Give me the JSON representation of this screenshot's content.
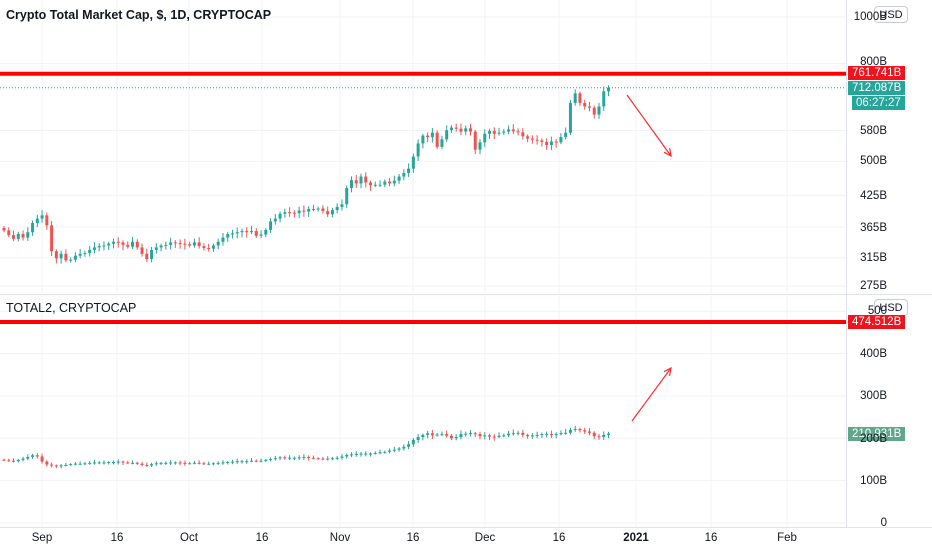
{
  "top_panel": {
    "title": "Crypto Total Market Cap, $, 1D, CRYPTOCAP",
    "currency": "USD",
    "tags": {
      "resistance": "761.741B",
      "last": "712.087B",
      "countdown": "06:27:27"
    }
  },
  "bottom_panel": {
    "title": "TOTAL2, CRYPTOCAP",
    "currency": "USD",
    "tags": {
      "resistance": "474.512B",
      "last": "210.931B"
    }
  },
  "colors": {
    "up": "#26a69a",
    "down": "#ef5350",
    "line": "#ff0000",
    "arrow": "#ff2a2a",
    "axis": "#131722",
    "grid": "#f0f3fa"
  },
  "chart_data": [
    {
      "type": "candlestick",
      "title": "Crypto Total Market Cap, $, 1D, CRYPTOCAP",
      "y_scale": "log",
      "ylim": [
        255,
        1100
      ],
      "y_ticks": [
        "1000B",
        "800B",
        "580B",
        "500B",
        "425B",
        "365B",
        "315B",
        "275B"
      ],
      "y_tick_values": [
        1000,
        800,
        580,
        500,
        425,
        365,
        315,
        275
      ],
      "close_series": [
        359,
        351,
        345,
        353,
        347,
        356,
        372,
        380,
        386,
        368,
        325,
        314,
        321,
        311,
        312,
        318,
        321,
        322,
        327,
        331,
        333,
        334,
        337,
        340,
        339,
        335,
        332,
        340,
        331,
        321,
        313,
        327,
        331,
        334,
        335,
        339,
        338,
        337,
        336,
        334,
        339,
        333,
        330,
        329,
        334,
        340,
        347,
        353,
        354,
        356,
        358,
        356,
        358,
        350,
        352,
        360,
        375,
        380,
        389,
        392,
        391,
        390,
        395,
        393,
        398,
        397,
        399,
        394,
        388,
        396,
        402,
        407,
        440,
        457,
        450,
        465,
        452,
        446,
        447,
        447,
        454,
        450,
        456,
        465,
        473,
        483,
        512,
        545,
        566,
        562,
        574,
        536,
        556,
        581,
        588,
        585,
        577,
        586,
        577,
        529,
        548,
        571,
        579,
        571,
        574,
        577,
        583,
        578,
        575,
        564,
        558,
        555,
        553,
        549,
        541,
        550,
        548,
        562,
        574,
        662,
        693,
        662,
        651,
        647,
        626,
        651,
        700,
        712
      ],
      "horizontal_line": 761.741,
      "last_price": 712.087,
      "countdown": "06:27:27"
    },
    {
      "type": "candlestick",
      "title": "TOTAL2, CRYPTOCAP",
      "y_scale": "linear",
      "ylim": [
        0,
        500
      ],
      "y_ticks": [
        "500",
        "400B",
        "300B",
        "200B",
        "100B",
        "0"
      ],
      "y_tick_values": [
        500,
        400,
        300,
        200,
        100,
        0
      ],
      "close_series": [
        148,
        147,
        146,
        149,
        152,
        156,
        160,
        157,
        145,
        138,
        136,
        135,
        136,
        137,
        139,
        140,
        140,
        141,
        142,
        143,
        143,
        143,
        144,
        144,
        145,
        143,
        141,
        142,
        140,
        137,
        136,
        139,
        141,
        142,
        142,
        143,
        143,
        142,
        141,
        141,
        142,
        141,
        140,
        140,
        141,
        142,
        143,
        144,
        145,
        146,
        146,
        146,
        147,
        146,
        147,
        149,
        151,
        153,
        155,
        154,
        154,
        154,
        155,
        156,
        154,
        153,
        152,
        151,
        152,
        153,
        154,
        157,
        161,
        162,
        163,
        164,
        164,
        164,
        165,
        167,
        168,
        171,
        173,
        176,
        180,
        186,
        196,
        203,
        208,
        212,
        207,
        209,
        210,
        206,
        200,
        203,
        210,
        211,
        212,
        210,
        205,
        207,
        204,
        203,
        206,
        207,
        211,
        212,
        213,
        208,
        205,
        207,
        208,
        210,
        210,
        209,
        210,
        212,
        213,
        220,
        222,
        219,
        216,
        213,
        205,
        203,
        208,
        211
      ],
      "horizontal_line": 474.512,
      "last_price": 210.931
    }
  ],
  "x_axis": {
    "labels": [
      "Sep",
      "16",
      "Oct",
      "16",
      "Nov",
      "16",
      "Dec",
      "16",
      "2021",
      "16",
      "Feb"
    ]
  }
}
